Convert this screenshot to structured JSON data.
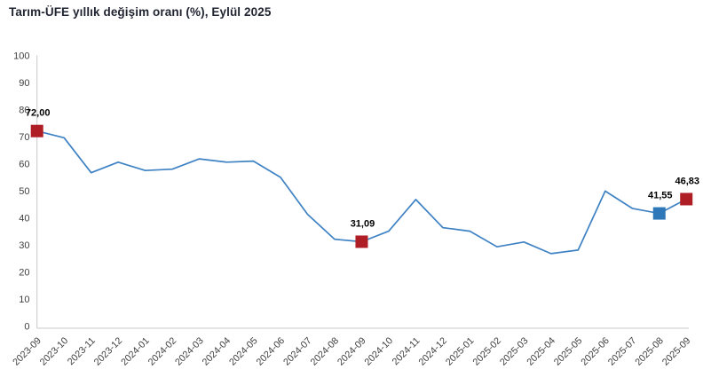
{
  "chart_data": {
    "type": "line",
    "title": "Tarım-ÜFE yıllık değişim oranı (%), Eylül 2025",
    "xlabel": "",
    "ylabel": "",
    "categories": [
      "2023-09",
      "2023-10",
      "2023-11",
      "2023-12",
      "2024-01",
      "2024-02",
      "2024-03",
      "2024-04",
      "2024-05",
      "2024-06",
      "2024-07",
      "2024-08",
      "2024-09",
      "2024-10",
      "2024-11",
      "2024-12",
      "2025-01",
      "2025-02",
      "2025-03",
      "2025-04",
      "2025-05",
      "2025-06",
      "2025-07",
      "2025-08",
      "2025-09"
    ],
    "values": [
      72.0,
      69.5,
      56.6,
      60.5,
      57.4,
      57.9,
      61.7,
      60.5,
      60.9,
      54.9,
      41.2,
      32.0,
      31.09,
      35.0,
      46.7,
      36.3,
      35.0,
      29.2,
      31.0,
      26.7,
      28.0,
      49.8,
      43.4,
      41.55,
      46.83
    ],
    "ylim": [
      0,
      100
    ],
    "yticks": [
      0,
      10,
      20,
      30,
      40,
      50,
      60,
      70,
      80,
      90,
      100
    ],
    "grid": false,
    "legend": null,
    "annotated_points": [
      {
        "category": "2023-09",
        "value": 72.0,
        "label": "72,00",
        "marker_color": "#ae1e24"
      },
      {
        "category": "2024-09",
        "value": 31.09,
        "label": "31,09",
        "marker_color": "#ae1e24"
      },
      {
        "category": "2025-08",
        "value": 41.55,
        "label": "41,55",
        "marker_color": "#2e77b8"
      },
      {
        "category": "2025-09",
        "value": 46.83,
        "label": "46,83",
        "marker_color": "#ae1e24"
      }
    ],
    "colors": {
      "line": "#3f82c4",
      "marker_red": "#ae1e24",
      "marker_blue": "#2e77b8",
      "axis": "#c9c9c9",
      "tick_label": "#3f3f3f",
      "value_label": "#000000",
      "title": "#1f2430"
    }
  }
}
